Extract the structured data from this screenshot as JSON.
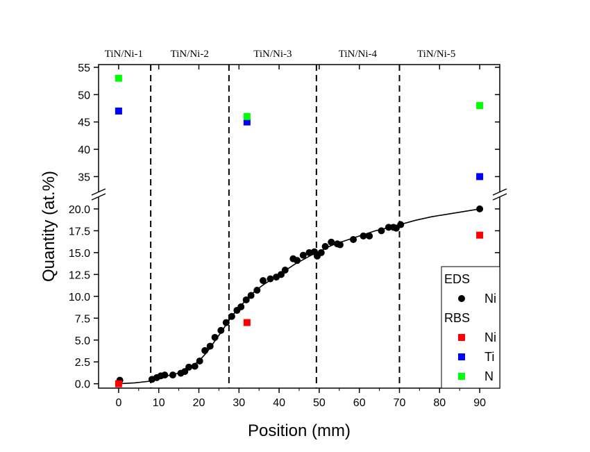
{
  "chart_data": {
    "type": "scatter",
    "xlabel": "Position (mm)",
    "ylabel": "Quantity (at.%)",
    "xlim": [
      -5,
      95
    ],
    "x_ticks": [
      0,
      10,
      20,
      30,
      40,
      50,
      60,
      70,
      80,
      90
    ],
    "x_tick_labels": [
      "0",
      "10",
      "20",
      "30",
      "40",
      "50",
      "60",
      "70",
      "80",
      "90"
    ],
    "y_axis_broken": true,
    "lower_ylim": [
      -0.5,
      21.5
    ],
    "upper_ylim": [
      32,
      55.5
    ],
    "lower_y_ticks": [
      0.0,
      2.5,
      5.0,
      7.5,
      10.0,
      12.5,
      15.0,
      17.5,
      20.0
    ],
    "lower_y_tick_labels": [
      "0.0",
      "2.5",
      "5.0",
      "7.5",
      "10.0",
      "12.5",
      "15.0",
      "17.5",
      "20.0"
    ],
    "upper_y_ticks": [
      35,
      40,
      45,
      50,
      55
    ],
    "upper_y_tick_labels": [
      "35",
      "40",
      "45",
      "50",
      "55"
    ],
    "region_boundaries": [
      8,
      27.5,
      49.3,
      70
    ],
    "regions": [
      {
        "label": "TiN/Ni-1",
        "center": 1.3
      },
      {
        "label": "TiN/Ni-2",
        "center": 17.7
      },
      {
        "label": "TiN/Ni-3",
        "center": 38.4
      },
      {
        "label": "TiN/Ni-4",
        "center": 59.6
      },
      {
        "label": "TiN/Ni-5",
        "center": 79.2
      }
    ],
    "legend": {
      "position": "bottom-right",
      "groups": [
        {
          "title": "EDS",
          "entries": [
            {
              "label": "Ni",
              "marker": "circle",
              "color": "#000000"
            }
          ]
        },
        {
          "title": "RBS",
          "entries": [
            {
              "label": "Ni",
              "marker": "square",
              "color": "#ff0000"
            },
            {
              "label": "Ti",
              "marker": "square",
              "color": "#0000ff"
            },
            {
              "label": "N",
              "marker": "square",
              "color": "#00ff00"
            }
          ]
        }
      ]
    },
    "series": [
      {
        "name": "Ni",
        "group": "EDS",
        "marker": "circle",
        "color": "#000000",
        "points": [
          [
            0.3,
            0.4
          ],
          [
            8.3,
            0.5
          ],
          [
            9.5,
            0.7
          ],
          [
            10.5,
            0.9
          ],
          [
            11.5,
            1.0
          ],
          [
            13.5,
            1.0
          ],
          [
            15.5,
            1.2
          ],
          [
            16.5,
            1.4
          ],
          [
            17.5,
            1.9
          ],
          [
            19.0,
            2.0
          ],
          [
            20.2,
            2.6
          ],
          [
            21.5,
            3.8
          ],
          [
            22.8,
            4.3
          ],
          [
            24.0,
            5.3
          ],
          [
            25.5,
            6.1
          ],
          [
            26.8,
            7.0
          ],
          [
            28.2,
            7.7
          ],
          [
            29.5,
            8.4
          ],
          [
            30.5,
            8.8
          ],
          [
            31.8,
            9.6
          ],
          [
            33.0,
            10.1
          ],
          [
            34.5,
            10.7
          ],
          [
            36.0,
            11.8
          ],
          [
            37.8,
            12.0
          ],
          [
            39.3,
            12.2
          ],
          [
            40.5,
            12.5
          ],
          [
            41.5,
            13.0
          ],
          [
            43.5,
            14.3
          ],
          [
            44.5,
            14.1
          ],
          [
            46.0,
            14.7
          ],
          [
            47.5,
            15.0
          ],
          [
            48.8,
            15.1
          ],
          [
            49.5,
            14.6
          ],
          [
            50.5,
            15.0
          ],
          [
            51.5,
            15.7
          ],
          [
            53.0,
            16.2
          ],
          [
            54.5,
            16.0
          ],
          [
            55.2,
            15.9
          ],
          [
            58.5,
            16.5
          ],
          [
            61.0,
            16.9
          ],
          [
            62.5,
            16.9
          ],
          [
            65.5,
            17.5
          ],
          [
            67.3,
            17.9
          ],
          [
            68.5,
            17.9
          ],
          [
            69.2,
            17.8
          ],
          [
            70.3,
            18.2
          ],
          [
            90.0,
            20.0
          ]
        ]
      },
      {
        "name": "Ni",
        "group": "RBS",
        "marker": "square",
        "color": "#ff0000",
        "points": [
          [
            0,
            0.0
          ],
          [
            32,
            7.0
          ],
          [
            90,
            17.0
          ]
        ]
      },
      {
        "name": "Ti",
        "group": "RBS",
        "marker": "square",
        "color": "#0000ff",
        "points": [
          [
            0,
            47
          ],
          [
            32,
            45
          ],
          [
            90,
            35
          ]
        ]
      },
      {
        "name": "N",
        "group": "RBS",
        "marker": "square",
        "color": "#00ff00",
        "points": [
          [
            0,
            53
          ],
          [
            32,
            46
          ],
          [
            90,
            48
          ]
        ]
      }
    ],
    "fit_curve": {
      "series": "Ni (EDS)",
      "points": [
        [
          0,
          0.0
        ],
        [
          4,
          0.1
        ],
        [
          8,
          0.3
        ],
        [
          10,
          0.6
        ],
        [
          12,
          0.9
        ],
        [
          14,
          1.1
        ],
        [
          16,
          1.4
        ],
        [
          18,
          1.9
        ],
        [
          20,
          2.6
        ],
        [
          22,
          3.6
        ],
        [
          24,
          4.9
        ],
        [
          26,
          6.2
        ],
        [
          28,
          7.6
        ],
        [
          30,
          8.7
        ],
        [
          32,
          9.7
        ],
        [
          34,
          10.6
        ],
        [
          36,
          11.3
        ],
        [
          38,
          11.9
        ],
        [
          40,
          12.5
        ],
        [
          42,
          13.1
        ],
        [
          44,
          13.7
        ],
        [
          46,
          14.2
        ],
        [
          48,
          14.7
        ],
        [
          50,
          15.1
        ],
        [
          52,
          15.6
        ],
        [
          54,
          16.0
        ],
        [
          56,
          16.3
        ],
        [
          58,
          16.6
        ],
        [
          60,
          16.9
        ],
        [
          62,
          17.2
        ],
        [
          64,
          17.5
        ],
        [
          66,
          17.7
        ],
        [
          68,
          18.0
        ],
        [
          70,
          18.2
        ],
        [
          74,
          18.7
        ],
        [
          78,
          19.1
        ],
        [
          82,
          19.4
        ],
        [
          86,
          19.7
        ],
        [
          90,
          20.0
        ]
      ]
    }
  }
}
